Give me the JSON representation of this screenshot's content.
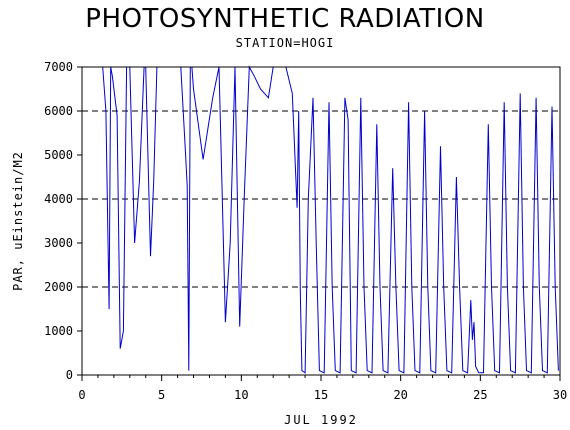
{
  "chart_data": {
    "type": "line",
    "title": "PHOTOSYNTHETIC RADIATION",
    "subtitle": "STATION=HOGI",
    "xlabel": "JUL 1992",
    "ylabel": "PAR, uEinstein/M2",
    "xlim": [
      0,
      30
    ],
    "ylim": [
      0,
      7000
    ],
    "xticks": [
      0,
      5,
      10,
      15,
      20,
      25,
      30
    ],
    "yticks": [
      0,
      1000,
      2000,
      3000,
      4000,
      5000,
      6000,
      7000
    ],
    "reference_lines_y": [
      2000,
      4000,
      6000
    ],
    "line_color": "#0000cc",
    "series": [
      {
        "x": [
          1.3,
          1.5,
          1.7,
          1.8,
          1.9,
          2.0,
          2.2,
          2.4,
          2.6,
          2.8,
          3.0,
          3.3,
          3.6,
          3.9,
          4.0,
          4.3,
          4.5,
          4.7,
          5.0,
          5.3,
          5.6,
          6.0,
          6.2,
          6.5,
          6.6,
          6.7,
          6.8,
          6.9,
          7.0,
          7.3,
          7.6,
          7.9,
          8.2,
          8.6,
          9.0,
          9.3,
          9.6,
          9.9,
          10.2,
          10.5,
          10.8,
          11.2,
          11.7,
          12.0,
          12.3,
          12.8,
          13.2,
          13.5,
          13.6,
          13.7,
          13.8,
          14.0,
          14.2,
          14.5,
          14.7,
          14.9,
          15.2,
          15.5,
          15.7,
          15.9,
          16.2,
          16.5,
          16.7,
          16.9,
          17.2,
          17.5,
          17.7,
          17.9,
          18.2,
          18.5,
          18.7,
          18.9,
          19.2,
          19.5,
          19.7,
          19.9,
          20.2,
          20.5,
          20.7,
          20.9,
          21.2,
          21.5,
          21.7,
          21.9,
          22.2,
          22.5,
          22.7,
          22.9,
          23.2,
          23.5,
          23.7,
          23.9,
          24.2,
          24.4,
          24.5,
          24.6,
          24.7,
          24.9,
          25.2,
          25.5,
          25.7,
          25.9,
          26.2,
          26.5,
          26.7,
          26.9,
          27.2,
          27.5,
          27.7,
          27.9,
          28.2,
          28.5,
          28.7,
          28.9,
          29.2,
          29.5,
          29.7,
          29.9
        ],
        "y": [
          7000,
          6000,
          1500,
          7000,
          6800,
          6500,
          5900,
          600,
          1000,
          7000,
          7000,
          3000,
          4400,
          7000,
          7000,
          2700,
          4400,
          7000,
          7000,
          7000,
          7000,
          7000,
          7000,
          5000,
          4300,
          100,
          7000,
          7000,
          6500,
          5700,
          4900,
          5600,
          6300,
          7000,
          1200,
          3000,
          7000,
          1100,
          4200,
          7000,
          6800,
          6500,
          6300,
          7000,
          7000,
          7000,
          6400,
          3800,
          6000,
          1900,
          100,
          50,
          4000,
          6300,
          3000,
          100,
          50,
          6200,
          2000,
          100,
          50,
          6300,
          5800,
          100,
          50,
          6300,
          2000,
          100,
          50,
          5700,
          2000,
          100,
          50,
          4700,
          2000,
          100,
          50,
          6200,
          2000,
          100,
          50,
          6000,
          2000,
          100,
          50,
          5200,
          2000,
          100,
          50,
          4500,
          2000,
          100,
          50,
          1700,
          800,
          1200,
          200,
          50,
          50,
          5700,
          2000,
          100,
          50,
          6200,
          2000,
          100,
          50,
          6400,
          2000,
          100,
          50,
          6300,
          2000,
          100,
          50,
          6100,
          2000,
          100
        ]
      }
    ]
  }
}
